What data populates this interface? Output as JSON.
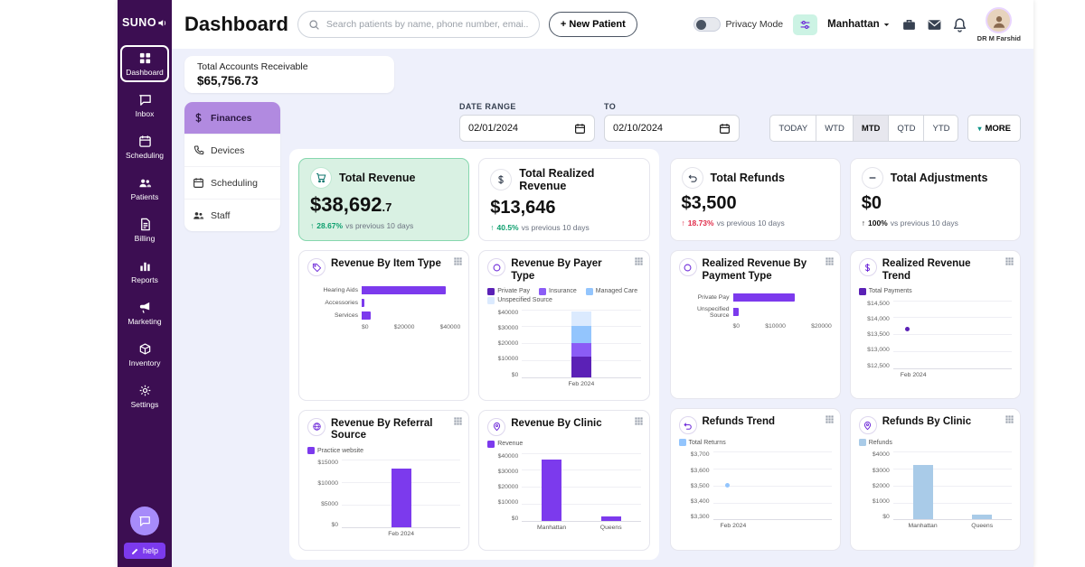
{
  "sidebar": {
    "logo": "SUNO",
    "items": [
      {
        "id": "dashboard",
        "label": "Dashboard",
        "icon": "grid",
        "active": true
      },
      {
        "id": "inbox",
        "label": "Inbox",
        "icon": "chat",
        "active": false
      },
      {
        "id": "scheduling",
        "label": "Scheduling",
        "icon": "calendar",
        "active": false
      },
      {
        "id": "patients",
        "label": "Patients",
        "icon": "people",
        "active": false
      },
      {
        "id": "billing",
        "label": "Billing",
        "icon": "doc",
        "active": false
      },
      {
        "id": "reports",
        "label": "Reports",
        "icon": "bars",
        "active": false
      },
      {
        "id": "marketing",
        "label": "Marketing",
        "icon": "megaphone",
        "active": false
      },
      {
        "id": "inventory",
        "label": "Inventory",
        "icon": "box",
        "active": false
      },
      {
        "id": "settings",
        "label": "Settings",
        "icon": "gear",
        "active": false
      }
    ],
    "help_label": "help"
  },
  "header": {
    "title": "Dashboard",
    "search_placeholder": "Search patients by name, phone number, emai...",
    "new_patient_label": "+ New Patient",
    "privacy_label": "Privacy Mode",
    "location": "Manhattan",
    "profile_name": "DR M Farshid"
  },
  "summary": {
    "ar_label": "Total Accounts Receivable",
    "ar_value": "$65,756.73"
  },
  "submenu": [
    {
      "id": "finances",
      "label": "Finances",
      "icon": "dollar",
      "active": true
    },
    {
      "id": "devices",
      "label": "Devices",
      "icon": "phone",
      "active": false
    },
    {
      "id": "scheduling",
      "label": "Scheduling",
      "icon": "calendar",
      "active": false
    },
    {
      "id": "staff",
      "label": "Staff",
      "icon": "people",
      "active": false
    }
  ],
  "filters": {
    "date_range_label": "DATE RANGE",
    "from_value": "02/01/2024",
    "to_label": "TO",
    "to_value": "02/10/2024",
    "quick_ranges": [
      "TODAY",
      "WTD",
      "MTD",
      "QTD",
      "YTD"
    ],
    "active_range": "MTD",
    "more_label": "MORE"
  },
  "kpis": [
    {
      "id": "total-revenue",
      "group": "left",
      "title": "Total Revenue",
      "icon": "cart",
      "value": "$38,692",
      "value_suffix": ".7",
      "delta": "28.67%",
      "delta_note": "vs previous 10 days",
      "tone": "green",
      "highlight": true
    },
    {
      "id": "total-realized-revenue",
      "group": "left",
      "title": "Total Realized Revenue",
      "icon": "dollar",
      "value": "$13,646",
      "value_suffix": "",
      "delta": "40.5%",
      "delta_note": "vs previous 10 days",
      "tone": "green",
      "highlight": false
    },
    {
      "id": "total-refunds",
      "group": "right",
      "title": "Total Refunds",
      "icon": "undo",
      "value": "$3,500",
      "value_suffix": "",
      "delta": "18.73%",
      "delta_note": "vs previous 10 days",
      "tone": "red",
      "highlight": false
    },
    {
      "id": "total-adjustments",
      "group": "right",
      "title": "Total Adjustments",
      "icon": "minus",
      "value": "$0",
      "value_suffix": "",
      "delta": "100%",
      "delta_note": "vs previous 10 days",
      "tone": "dark",
      "highlight": false
    }
  ],
  "charts": [
    {
      "id": "revenue-by-item-type",
      "group": "left",
      "title": "Revenue By Item Type",
      "icon": "tag",
      "type": "hbar",
      "categories": [
        "Hearing Aids",
        "Accessories",
        "Services"
      ],
      "values": [
        34000,
        1200,
        3500
      ],
      "max": 40000,
      "xticks": [
        "$0",
        "$20000",
        "$40000"
      ],
      "color": "#7c3aed",
      "legend": []
    },
    {
      "id": "revenue-by-payer-type",
      "group": "left",
      "title": "Revenue By Payer Type",
      "icon": "ring",
      "type": "stacked",
      "categories": [
        "Feb 2024"
      ],
      "series": [
        {
          "name": "Private Pay",
          "value": 12000,
          "color": "#5b21b6"
        },
        {
          "name": "Insurance",
          "value": 8000,
          "color": "#8b5cf6"
        },
        {
          "name": "Managed Care",
          "value": 10000,
          "color": "#93c5fd"
        },
        {
          "name": "Unspecified Source",
          "value": 8692,
          "color": "#dbeafe"
        }
      ],
      "max": 40000,
      "yticks": [
        "$40000",
        "$30000",
        "$20000",
        "$10000",
        "$0"
      ],
      "legend": [
        {
          "label": "Private Pay",
          "color": "#5b21b6"
        },
        {
          "label": "Insurance",
          "color": "#8b5cf6"
        },
        {
          "label": "Managed Care",
          "color": "#93c5fd"
        },
        {
          "label": "Unspecified Source",
          "color": "#dbeafe"
        }
      ]
    },
    {
      "id": "revenue-by-referral-source",
      "group": "left",
      "title": "Revenue By Referral Source",
      "icon": "globe",
      "type": "vbar",
      "categories": [
        "Feb 2024"
      ],
      "values": [
        13000
      ],
      "max": 15000,
      "yticks": [
        "$15000",
        "$10000",
        "$5000",
        "$0"
      ],
      "color": "#7c3aed",
      "legend": [
        {
          "label": "Practice website",
          "color": "#7c3aed"
        }
      ]
    },
    {
      "id": "revenue-by-clinic",
      "group": "left",
      "title": "Revenue By Clinic",
      "icon": "pin",
      "type": "vbar",
      "categories": [
        "Manhattan",
        "Queens"
      ],
      "values": [
        36000,
        2500
      ],
      "max": 40000,
      "yticks": [
        "$40000",
        "$30000",
        "$20000",
        "$10000",
        "$0"
      ],
      "color": "#7c3aed",
      "legend": [
        {
          "label": "Revenue",
          "color": "#7c3aed"
        }
      ]
    },
    {
      "id": "realized-revenue-by-payment-type",
      "group": "right",
      "title": "Realized Revenue By Payment Type",
      "icon": "ring",
      "type": "hbar",
      "categories": [
        "Private Pay",
        "Unspecified Source"
      ],
      "values": [
        12500,
        1146
      ],
      "max": 20000,
      "xticks": [
        "$0",
        "$10000",
        "$20000"
      ],
      "color": "#7c3aed",
      "legend": []
    },
    {
      "id": "realized-revenue-trend",
      "group": "right",
      "title": "Realized Revenue Trend",
      "icon": "dollar",
      "type": "line",
      "categories": [
        "Feb 2024"
      ],
      "values": [
        13646
      ],
      "min": 12500,
      "max": 14500,
      "yticks": [
        "$14,500",
        "$14,000",
        "$13,500",
        "$13,000",
        "$12,500"
      ],
      "color": "#5b21b6",
      "legend": [
        {
          "label": "Total Payments",
          "color": "#5b21b6"
        }
      ]
    },
    {
      "id": "refunds-trend",
      "group": "right",
      "title": "Refunds Trend",
      "icon": "undo",
      "type": "line",
      "categories": [
        "Feb 2024"
      ],
      "values": [
        3500
      ],
      "min": 3300,
      "max": 3700,
      "yticks": [
        "$3,700",
        "$3,600",
        "$3,500",
        "$3,400",
        "$3,300"
      ],
      "color": "#93c5fd",
      "legend": [
        {
          "label": "Total Returns",
          "color": "#93c5fd"
        }
      ]
    },
    {
      "id": "refunds-by-clinic",
      "group": "right",
      "title": "Refunds By Clinic",
      "icon": "pin",
      "type": "vbar",
      "categories": [
        "Manhattan",
        "Queens"
      ],
      "values": [
        3200,
        300
      ],
      "max": 4000,
      "yticks": [
        "$4000",
        "$3000",
        "$2000",
        "$1000",
        "$0"
      ],
      "color": "#a9cbe8",
      "legend": [
        {
          "label": "Refunds",
          "color": "#a9cbe8"
        }
      ]
    }
  ],
  "colors": {
    "sidebar_bg": "#3c0e52",
    "accent_purple": "#7c3aed",
    "kpi_green_bg": "#d9f1e3",
    "positive": "#0d9f6e",
    "negative": "#e02d4b",
    "page_bg": "#eef0fb"
  }
}
